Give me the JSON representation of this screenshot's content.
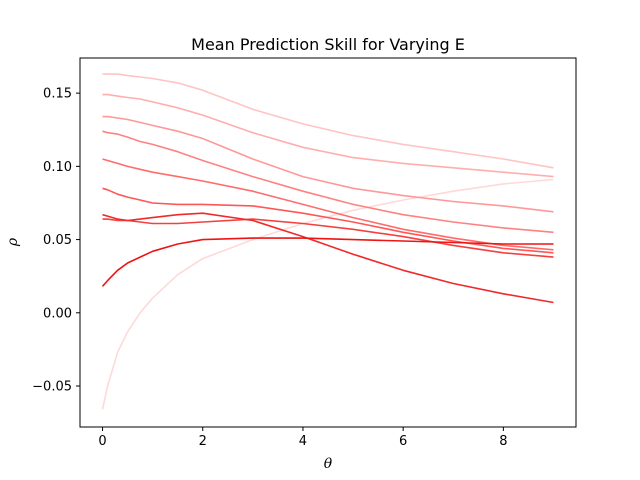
{
  "chart_data": {
    "type": "line",
    "title": "Mean Prediction Skill for Varying E",
    "xlabel": "θ",
    "ylabel": "ρ",
    "xlim": [
      -0.45,
      9.45
    ],
    "ylim": [
      -0.078,
      0.174
    ],
    "xticks": [
      0,
      2,
      4,
      6,
      8
    ],
    "xtick_labels": [
      "0",
      "2",
      "4",
      "6",
      "8"
    ],
    "yticks": [
      -0.05,
      0.0,
      0.05,
      0.1,
      0.15
    ],
    "ytick_labels": [
      "−0.05",
      "0.00",
      "0.05",
      "0.10",
      "0.15"
    ],
    "grid": false,
    "legend": "none",
    "x": [
      0,
      0.1,
      0.3,
      0.5,
      0.75,
      1,
      1.5,
      2,
      3,
      4,
      5,
      6,
      7,
      8,
      9
    ],
    "series": [
      {
        "color": "#ffd9d9",
        "values": [
          -0.066,
          -0.05,
          -0.027,
          -0.013,
          0.0,
          0.01,
          0.026,
          0.037,
          0.05,
          0.061,
          0.07,
          0.077,
          0.083,
          0.088,
          0.091
        ]
      },
      {
        "color": "#ffc4c4",
        "values": [
          0.163,
          0.163,
          0.163,
          0.162,
          0.161,
          0.16,
          0.157,
          0.152,
          0.139,
          0.129,
          0.121,
          0.115,
          0.11,
          0.105,
          0.099
        ]
      },
      {
        "color": "#ffaeae",
        "values": [
          0.149,
          0.149,
          0.148,
          0.147,
          0.146,
          0.144,
          0.14,
          0.135,
          0.123,
          0.113,
          0.106,
          0.102,
          0.099,
          0.096,
          0.093
        ]
      },
      {
        "color": "#ff9898",
        "values": [
          0.134,
          0.134,
          0.133,
          0.132,
          0.13,
          0.128,
          0.124,
          0.119,
          0.105,
          0.093,
          0.085,
          0.08,
          0.076,
          0.073,
          0.069
        ]
      },
      {
        "color": "#ff8282",
        "values": [
          0.124,
          0.123,
          0.122,
          0.12,
          0.117,
          0.115,
          0.11,
          0.104,
          0.093,
          0.083,
          0.074,
          0.067,
          0.062,
          0.058,
          0.055
        ]
      },
      {
        "color": "#ff6c6c",
        "values": [
          0.105,
          0.104,
          0.102,
          0.1,
          0.098,
          0.096,
          0.093,
          0.09,
          0.083,
          0.074,
          0.065,
          0.057,
          0.051,
          0.046,
          0.043
        ]
      },
      {
        "color": "#ff5656",
        "values": [
          0.085,
          0.084,
          0.081,
          0.079,
          0.077,
          0.075,
          0.074,
          0.074,
          0.073,
          0.068,
          0.062,
          0.055,
          0.049,
          0.044,
          0.041
        ]
      },
      {
        "color": "#f54040",
        "values": [
          0.064,
          0.064,
          0.063,
          0.063,
          0.062,
          0.061,
          0.061,
          0.062,
          0.064,
          0.061,
          0.057,
          0.052,
          0.046,
          0.041,
          0.038
        ]
      },
      {
        "color": "#f02a2a",
        "values": [
          0.067,
          0.066,
          0.064,
          0.063,
          0.064,
          0.065,
          0.067,
          0.068,
          0.063,
          0.052,
          0.04,
          0.029,
          0.02,
          0.013,
          0.007
        ]
      },
      {
        "color": "#ee1414",
        "values": [
          0.018,
          0.022,
          0.029,
          0.034,
          0.038,
          0.042,
          0.047,
          0.05,
          0.051,
          0.051,
          0.05,
          0.049,
          0.048,
          0.047,
          0.047
        ]
      }
    ]
  }
}
